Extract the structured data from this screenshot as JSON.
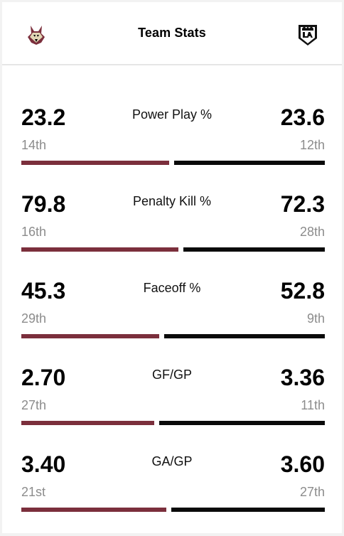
{
  "header": {
    "title": "Team Stats",
    "home_logo": "coyotes-logo",
    "away_logo": "kings-logo"
  },
  "colors": {
    "home": "#7b2f3c",
    "away": "#0a0a0a"
  },
  "stats": [
    {
      "label": "Power Play %",
      "home_value": "23.2",
      "home_rank": "14th",
      "away_value": "23.6",
      "away_rank": "12th",
      "home_share": 0.496
    },
    {
      "label": "Penalty Kill %",
      "home_value": "79.8",
      "home_rank": "16th",
      "away_value": "72.3",
      "away_rank": "28th",
      "home_share": 0.525
    },
    {
      "label": "Faceoff %",
      "home_value": "45.3",
      "home_rank": "29th",
      "away_value": "52.8",
      "away_rank": "9th",
      "home_share": 0.462
    },
    {
      "label": "GF/GP",
      "home_value": "2.70",
      "home_rank": "27th",
      "away_value": "3.36",
      "away_rank": "11th",
      "home_share": 0.446
    },
    {
      "label": "GA/GP",
      "home_value": "3.40",
      "home_rank": "21st",
      "away_value": "3.60",
      "away_rank": "27th",
      "home_share": 0.486
    }
  ]
}
